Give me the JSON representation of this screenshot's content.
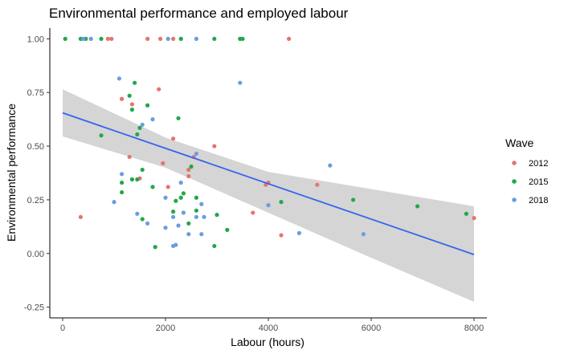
{
  "chart_data": {
    "type": "scatter",
    "title": "Environmental performance and employed labour",
    "xlabel": "Labour (hours)",
    "ylabel": "Environmental performance",
    "xlim": [
      -250,
      8250
    ],
    "ylim": [
      -0.3,
      1.05
    ],
    "xticks": [
      0,
      2000,
      4000,
      6000,
      8000
    ],
    "xtick_labels": [
      "0",
      "2000",
      "4000",
      "6000",
      "8000"
    ],
    "yticks": [
      -0.25,
      0,
      0.25,
      0.5,
      0.75,
      1.0
    ],
    "ytick_labels": [
      "-0.25",
      "0.00",
      "0.25",
      "0.50",
      "0.75",
      "1.00"
    ],
    "grid": false,
    "legend": {
      "title": "Wave",
      "position": "right"
    },
    "colors": {
      "2012": "#e2766e",
      "2015": "#22a84a",
      "2018": "#6a9de0",
      "trend": "#3366ee",
      "band": "#d3d3d3"
    },
    "trend": {
      "x": [
        0,
        8000
      ],
      "y": [
        0.655,
        -0.005
      ]
    },
    "band": {
      "x": [
        0,
        2000,
        4000,
        6000,
        8000
      ],
      "lower": [
        0.545,
        0.4,
        0.19,
        -0.02,
        -0.225
      ],
      "upper": [
        0.765,
        0.54,
        0.38,
        0.3,
        0.22
      ]
    },
    "series": [
      {
        "name": "2012",
        "points": [
          [
            950,
            1.0
          ],
          [
            880,
            1.0
          ],
          [
            1650,
            1.0
          ],
          [
            1900,
            1.0
          ],
          [
            2150,
            1.0
          ],
          [
            3450,
            1.0
          ],
          [
            4400,
            1.0
          ],
          [
            1870,
            0.765
          ],
          [
            1150,
            0.72
          ],
          [
            1350,
            0.695
          ],
          [
            2950,
            0.5
          ],
          [
            2150,
            0.535
          ],
          [
            2550,
            0.45
          ],
          [
            2450,
            0.39
          ],
          [
            1300,
            0.45
          ],
          [
            1950,
            0.42
          ],
          [
            2450,
            0.36
          ],
          [
            1500,
            0.35
          ],
          [
            4000,
            0.33
          ],
          [
            3950,
            0.32
          ],
          [
            2050,
            0.31
          ],
          [
            3700,
            0.19
          ],
          [
            4950,
            0.32
          ],
          [
            350,
            0.17
          ],
          [
            4250,
            0.085
          ],
          [
            8000,
            0.165
          ]
        ]
      },
      {
        "name": "2015",
        "points": [
          [
            50,
            1.0
          ],
          [
            350,
            1.0
          ],
          [
            450,
            1.0
          ],
          [
            750,
            1.0
          ],
          [
            2300,
            1.0
          ],
          [
            2950,
            1.0
          ],
          [
            3450,
            1.0
          ],
          [
            3500,
            1.0
          ],
          [
            1400,
            0.795
          ],
          [
            1300,
            0.735
          ],
          [
            1350,
            0.67
          ],
          [
            1650,
            0.69
          ],
          [
            2250,
            0.63
          ],
          [
            1500,
            0.585
          ],
          [
            1450,
            0.555
          ],
          [
            750,
            0.55
          ],
          [
            2500,
            0.405
          ],
          [
            1550,
            0.39
          ],
          [
            1350,
            0.345
          ],
          [
            1450,
            0.345
          ],
          [
            1150,
            0.33
          ],
          [
            1150,
            0.285
          ],
          [
            1750,
            0.31
          ],
          [
            2350,
            0.28
          ],
          [
            2300,
            0.26
          ],
          [
            2200,
            0.245
          ],
          [
            2600,
            0.26
          ],
          [
            2600,
            0.2
          ],
          [
            2150,
            0.195
          ],
          [
            1550,
            0.16
          ],
          [
            3000,
            0.18
          ],
          [
            2450,
            0.14
          ],
          [
            3200,
            0.11
          ],
          [
            1800,
            0.03
          ],
          [
            2950,
            0.035
          ],
          [
            4250,
            0.24
          ],
          [
            5650,
            0.25
          ],
          [
            6900,
            0.22
          ],
          [
            7850,
            0.185
          ]
        ]
      },
      {
        "name": "2018",
        "points": [
          [
            400,
            1.0
          ],
          [
            550,
            1.0
          ],
          [
            2050,
            1.0
          ],
          [
            2600,
            1.0
          ],
          [
            1100,
            0.815
          ],
          [
            3450,
            0.795
          ],
          [
            1750,
            0.625
          ],
          [
            1550,
            0.6
          ],
          [
            2600,
            0.465
          ],
          [
            5200,
            0.41
          ],
          [
            1150,
            0.37
          ],
          [
            2300,
            0.33
          ],
          [
            2000,
            0.26
          ],
          [
            2700,
            0.23
          ],
          [
            4000,
            0.225
          ],
          [
            1000,
            0.24
          ],
          [
            1450,
            0.185
          ],
          [
            2750,
            0.17
          ],
          [
            2600,
            0.17
          ],
          [
            2350,
            0.19
          ],
          [
            2150,
            0.17
          ],
          [
            1650,
            0.14
          ],
          [
            2250,
            0.13
          ],
          [
            2000,
            0.12
          ],
          [
            2450,
            0.09
          ],
          [
            2700,
            0.09
          ],
          [
            2150,
            0.035
          ],
          [
            2200,
            0.04
          ],
          [
            4600,
            0.095
          ],
          [
            5850,
            0.09
          ]
        ]
      }
    ]
  }
}
